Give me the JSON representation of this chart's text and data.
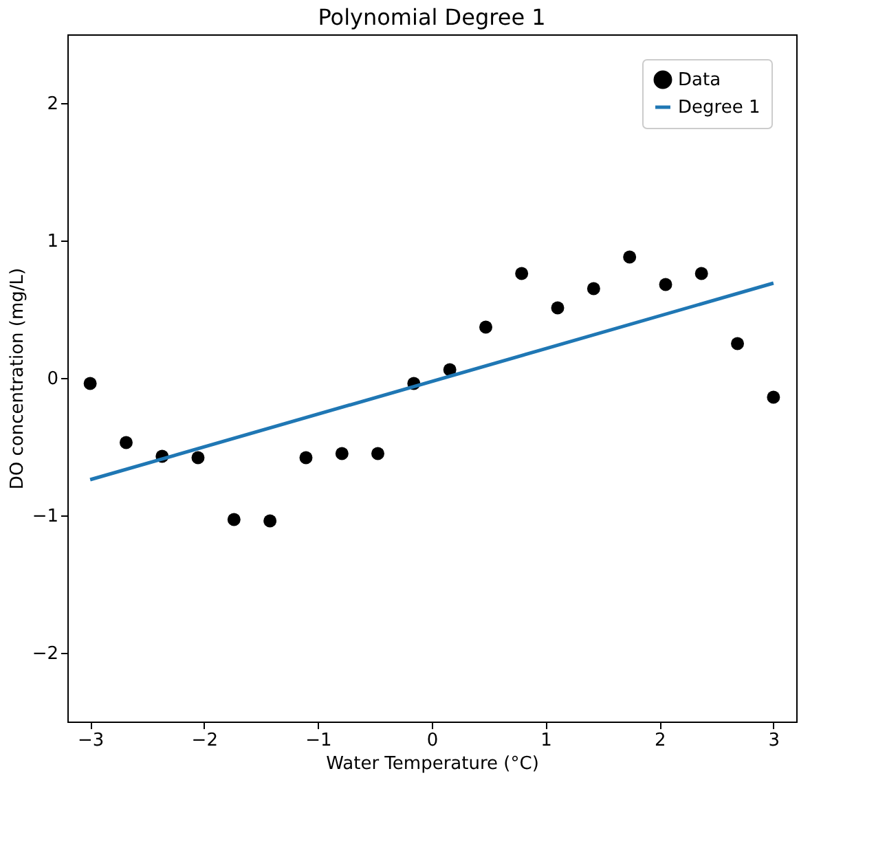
{
  "chart_data": {
    "type": "scatter",
    "title": "Polynomial Degree 1",
    "xlabel": "Water Temperature (°C)",
    "ylabel": "DO concentration (mg/L)",
    "xlim": [
      -3.2,
      3.2
    ],
    "ylim": [
      -2.5,
      2.5
    ],
    "xticks": [
      -3,
      -2,
      -1,
      0,
      1,
      2,
      3
    ],
    "yticks": [
      -2,
      -1,
      0,
      1,
      2
    ],
    "grid": false,
    "legend": "top right",
    "series": [
      {
        "name": "Data",
        "color": "#000000",
        "marker": "circle",
        "x": [
          -3,
          -2.684,
          -2.368,
          -2.053,
          -1.737,
          -1.421,
          -1.105,
          -0.789,
          -0.474,
          -0.158,
          0.158,
          0.474,
          0.789,
          1.105,
          1.421,
          1.737,
          2.053,
          2.368,
          2.684,
          3
        ],
        "values": [
          -0.04,
          -0.47,
          -0.57,
          -0.58,
          -1.03,
          -1.04,
          -0.58,
          -0.55,
          -0.55,
          -0.04,
          0.06,
          0.37,
          0.76,
          0.51,
          0.65,
          0.88,
          0.68,
          0.76,
          0.25,
          -0.14
        ]
      },
      {
        "name": "Degree 1",
        "type": "line",
        "color": "#1f77b4",
        "line_style": "solid",
        "x": [
          -3,
          3
        ],
        "values": [
          -0.74,
          0.69
        ]
      }
    ]
  }
}
